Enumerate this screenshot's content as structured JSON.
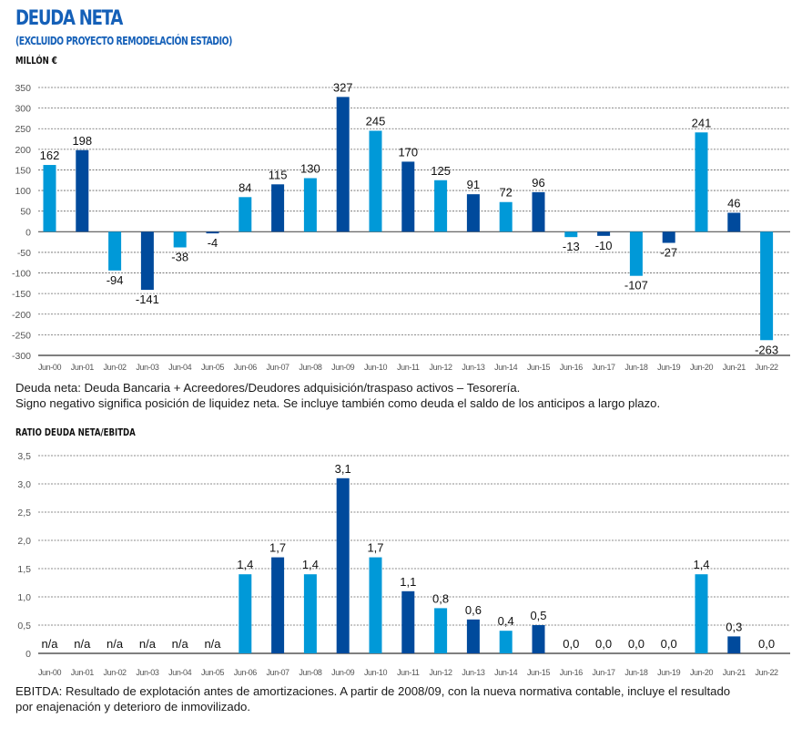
{
  "header": {
    "title": "DEUDA NETA",
    "subtitle": "(EXCLUIDO PROYECTO REMODELACIÓN ESTADIO)",
    "unit": "MILLÓN €"
  },
  "colors": {
    "title": "#1560b8",
    "bar_light": "#0099d8",
    "bar_dark": "#004a9c",
    "gridline": "#666666",
    "axis": "#555555"
  },
  "notes": {
    "deuda_line1": "Deuda neta: Deuda Bancaria + Acreedores/Deudores adquisición/traspaso activos – Tesorería.",
    "deuda_line2": "Signo negativo significa posición de liquidez neta. Se incluye también como deuda el saldo de los anticipos a largo plazo.",
    "ebitda_line1": "EBITDA: Resultado de explotación antes de amortizaciones. A partir de 2008/09, con la nueva normativa contable, incluye el resultado",
    "ebitda_line2": "por enajenación y deterioro de inmovilizado."
  },
  "section2_title": "RATIO DEUDA NETA/EBITDA",
  "chart_data": [
    {
      "type": "bar",
      "title": "DEUDA NETA",
      "subtitle": "(EXCLUIDO PROYECTO REMODELACIÓN ESTADIO)",
      "ylabel": "MILLÓN €",
      "xlabel": "",
      "categories": [
        "Jun-00",
        "Jun-01",
        "Jun-02",
        "Jun-03",
        "Jun-04",
        "Jun-05",
        "Jun-06",
        "Jun-07",
        "Jun-08",
        "Jun-09",
        "Jun-10",
        "Jun-11",
        "Jun-12",
        "Jun-13",
        "Jun-14",
        "Jun-15",
        "Jun-16",
        "Jun-17",
        "Jun-18",
        "Jun-19",
        "Jun-20",
        "Jun-21",
        "Jun-22"
      ],
      "values": [
        162,
        198,
        -94,
        -141,
        -38,
        -4,
        84,
        115,
        130,
        327,
        245,
        170,
        125,
        91,
        72,
        96,
        -13,
        -10,
        -107,
        -27,
        241,
        46,
        -263
      ],
      "labels": [
        "162",
        "198",
        "-94",
        "-141",
        "-38",
        "-4",
        "84",
        "115",
        "130",
        "327",
        "245",
        "170",
        "125",
        "91",
        "72",
        "96",
        "-13",
        "-10",
        "-107",
        "-27",
        "241",
        "46",
        "-263"
      ],
      "shade": [
        "light",
        "dark",
        "light",
        "dark",
        "light",
        "dark",
        "light",
        "dark",
        "light",
        "dark",
        "light",
        "dark",
        "light",
        "dark",
        "light",
        "dark",
        "light",
        "dark",
        "light",
        "dark",
        "light",
        "dark",
        "light"
      ],
      "yticks": [
        350,
        300,
        250,
        200,
        150,
        100,
        50,
        0,
        -50,
        -100,
        -150,
        -200,
        -250,
        -300
      ],
      "ytick_labels": [
        "350",
        "300",
        "250",
        "200",
        "150",
        "100",
        "50",
        "0",
        "-50",
        "-100",
        "-150",
        "-200",
        "-250",
        "-300"
      ],
      "ylim": [
        -300,
        350
      ],
      "grid": true,
      "legend": "none"
    },
    {
      "type": "bar",
      "title": "RATIO DEUDA NETA/EBITDA",
      "xlabel": "",
      "ylabel": "",
      "categories": [
        "Jun-00",
        "Jun-01",
        "Jun-02",
        "Jun-03",
        "Jun-04",
        "Jun-05",
        "Jun-06",
        "Jun-07",
        "Jun-08",
        "Jun-09",
        "Jun-10",
        "Jun-11",
        "Jun-12",
        "Jun-13",
        "Jun-14",
        "Jun-15",
        "Jun-16",
        "Jun-17",
        "Jun-18",
        "Jun-19",
        "Jun-20",
        "Jun-21",
        "Jun-22"
      ],
      "values": [
        null,
        null,
        null,
        null,
        null,
        null,
        1.4,
        1.7,
        1.4,
        3.1,
        1.7,
        1.1,
        0.8,
        0.6,
        0.4,
        0.5,
        0.0,
        0.0,
        0.0,
        0.0,
        1.4,
        0.3,
        0.0
      ],
      "labels": [
        "n/a",
        "n/a",
        "n/a",
        "n/a",
        "n/a",
        "n/a",
        "1,4",
        "1,7",
        "1,4",
        "3,1",
        "1,7",
        "1,1",
        "0,8",
        "0,6",
        "0,4",
        "0,5",
        "0,0",
        "0,0",
        "0,0",
        "0,0",
        "1,4",
        "0,3",
        "0,0"
      ],
      "shade": [
        "light",
        "dark",
        "light",
        "dark",
        "light",
        "dark",
        "light",
        "dark",
        "light",
        "dark",
        "light",
        "dark",
        "light",
        "dark",
        "light",
        "dark",
        "light",
        "dark",
        "light",
        "dark",
        "light",
        "dark",
        "light"
      ],
      "yticks": [
        3.5,
        3.0,
        2.5,
        2.0,
        1.5,
        1.0,
        0.5,
        0
      ],
      "ytick_labels": [
        "3,5",
        "3,0",
        "2,5",
        "2,0",
        "1,5",
        "1,0",
        "0,5",
        "0"
      ],
      "ylim": [
        0,
        3.5
      ],
      "grid": true,
      "legend": "none"
    }
  ]
}
